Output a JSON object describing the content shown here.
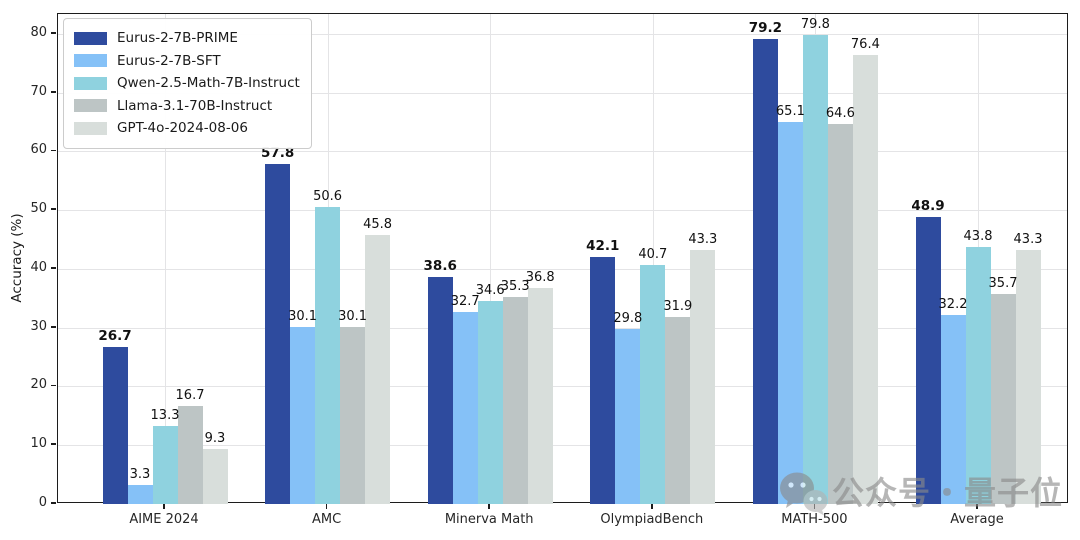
{
  "figure": {
    "background": "#ffffff",
    "watermark": {
      "text": "公众号・量子位",
      "icon": "wechat-icon",
      "color": "#8a8a8a"
    }
  },
  "chart_data": {
    "type": "bar",
    "title": "",
    "categories": [
      "AIME 2024",
      "AMC",
      "Minerva Math",
      "OlympiadBench",
      "MATH-500",
      "Average"
    ],
    "series": [
      {
        "name": "Eurus-2-7B-PRIME",
        "color": "#2e4b9e",
        "values": [
          26.7,
          57.8,
          38.6,
          42.1,
          79.2,
          48.9
        ],
        "bold_labels": true
      },
      {
        "name": "Eurus-2-7B-SFT",
        "color": "#85c1f7",
        "values": [
          3.3,
          30.1,
          32.7,
          29.8,
          65.1,
          32.2
        ],
        "bold_labels": false
      },
      {
        "name": "Qwen-2.5-Math-7B-Instruct",
        "color": "#8fd2df",
        "values": [
          13.3,
          50.6,
          34.6,
          40.7,
          79.8,
          43.8
        ],
        "bold_labels": false
      },
      {
        "name": "Llama-3.1-70B-Instruct",
        "color": "#bdc5c5",
        "values": [
          16.7,
          30.1,
          35.3,
          31.9,
          64.6,
          35.7
        ],
        "bold_labels": false
      },
      {
        "name": "GPT-4o-2024-08-06",
        "color": "#d8dedb",
        "values": [
          9.3,
          45.8,
          36.8,
          43.3,
          76.4,
          43.3
        ],
        "bold_labels": false
      }
    ],
    "xlabel": "",
    "ylabel": "Accuracy (%)",
    "ylim": [
      0,
      83.4
    ],
    "yticks": [
      0,
      10,
      20,
      30,
      40,
      50,
      60,
      70,
      80
    ],
    "grid": true,
    "legend_position": "upper left",
    "value_labels": true
  }
}
